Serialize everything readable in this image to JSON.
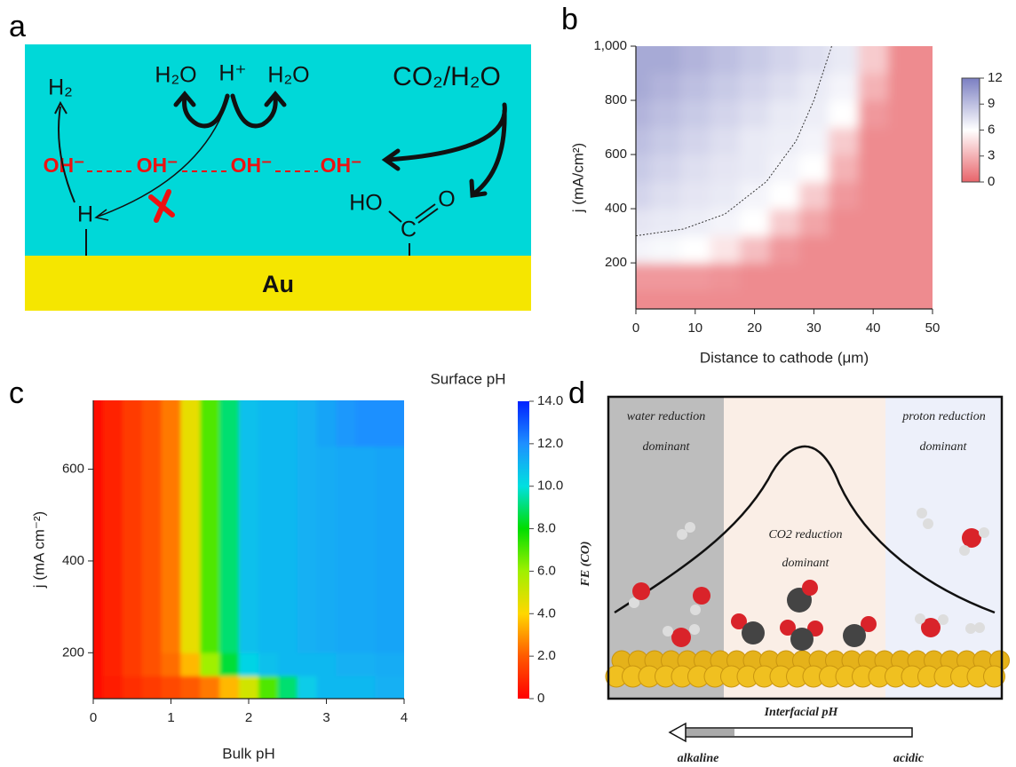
{
  "panel_labels": [
    "a",
    "b",
    "c",
    "d"
  ],
  "diagram_a": {
    "texts": [
      "H₂",
      "H₂O",
      "H⁺",
      "H₂O",
      "CO₂/H₂O",
      "OH⁻",
      "OH⁻",
      "OH⁻",
      "OH⁻",
      "H",
      "HO",
      "C",
      "O",
      "Au"
    ]
  },
  "chart_data": [
    {
      "type": "heatmap",
      "xlabel": "Distance to cathode (μm)",
      "ylabel": "j (mA/cm²)",
      "x": [
        0,
        5,
        10,
        15,
        20,
        25,
        30,
        35,
        40,
        45,
        50
      ],
      "y": [
        50,
        150,
        250,
        350,
        450,
        550,
        650,
        750,
        850,
        950
      ],
      "z": [
        [
          1.5,
          1.5,
          1.5,
          1.5,
          1.5,
          1.5,
          1.5,
          1.5,
          1.5,
          1.5,
          1.5
        ],
        [
          2,
          2,
          2,
          1.8,
          1.5,
          1.5,
          1.5,
          1.5,
          1.5,
          1.5,
          1.5
        ],
        [
          6.5,
          6.3,
          6,
          5,
          3.5,
          2,
          1.5,
          1.5,
          1.5,
          1.5,
          1.5
        ],
        [
          7.2,
          7,
          6.8,
          6.5,
          6,
          4,
          2.5,
          1.5,
          1.5,
          1.5,
          1.5
        ],
        [
          8,
          7.5,
          7.2,
          7,
          6.5,
          6,
          4,
          2,
          1.5,
          1.5,
          1.5
        ],
        [
          8.5,
          8,
          7.5,
          7.2,
          7,
          6.5,
          6,
          3,
          1.5,
          1.5,
          1.5
        ],
        [
          9,
          8.5,
          8,
          7.5,
          7,
          6.8,
          6.5,
          4,
          1.5,
          1.5,
          1.5
        ],
        [
          9.5,
          9,
          8.5,
          8,
          7.5,
          7,
          6.8,
          6,
          2,
          1.5,
          1.5
        ],
        [
          10,
          9.5,
          9,
          8.5,
          8,
          7.5,
          7,
          6.5,
          3,
          1.5,
          1.5
        ],
        [
          10,
          10,
          9.5,
          9,
          8.5,
          8,
          7.5,
          7,
          4,
          1.5,
          1.5
        ]
      ],
      "contour_line": {
        "x": [
          0,
          8,
          15,
          22,
          27,
          30,
          33
        ],
        "y": [
          300,
          325,
          380,
          500,
          650,
          800,
          1000
        ]
      },
      "xlim": [
        0,
        50
      ],
      "ylim": [
        30,
        1000
      ],
      "xticks": [
        0,
        10,
        20,
        30,
        40,
        50
      ],
      "yticks": [
        200,
        400,
        600,
        800,
        {
          "value": 1000,
          "label": "1,000"
        }
      ],
      "colorscale": [
        [
          0,
          "#e8646a"
        ],
        [
          6,
          "#ffffff"
        ],
        [
          12,
          "#7b7fc2"
        ]
      ],
      "colorbar": {
        "lim": [
          0,
          12
        ],
        "ticks": [
          0,
          3,
          6,
          9,
          12
        ]
      }
    },
    {
      "type": "contour",
      "xlabel": "Bulk pH",
      "ylabel": "j (mA cm⁻²)",
      "colorbar_title": "Surface pH",
      "x": [
        0,
        0.25,
        0.5,
        0.75,
        1,
        1.25,
        1.5,
        1.75,
        2,
        2.25,
        2.5,
        2.75,
        3,
        3.25,
        3.5,
        3.75,
        4
      ],
      "y": [
        125,
        175,
        225,
        275,
        325,
        375,
        425,
        475,
        525,
        575,
        625,
        675,
        725
      ],
      "z": [
        [
          0.3,
          0.6,
          1,
          1.3,
          1.6,
          2,
          2.5,
          3.5,
          5,
          7,
          9,
          10.5,
          11,
          11,
          11,
          11.2,
          11.2
        ],
        [
          0.3,
          0.8,
          1.3,
          1.8,
          2.3,
          3.5,
          6,
          8.5,
          10.3,
          10.8,
          11,
          11,
          11,
          11.2,
          11.2,
          11.3,
          11.3
        ],
        [
          0.3,
          0.8,
          1.3,
          1.8,
          2.5,
          4.5,
          7,
          9,
          10.8,
          11,
          11,
          11.2,
          11.3,
          11.4,
          11.4,
          11.5,
          11.5
        ],
        [
          0.3,
          0.8,
          1.3,
          1.8,
          2.5,
          4.5,
          7,
          9,
          10.8,
          11,
          11,
          11.2,
          11.3,
          11.4,
          11.4,
          11.5,
          11.5
        ],
        [
          0.3,
          0.8,
          1.3,
          1.8,
          2.5,
          4.5,
          7,
          9,
          10.8,
          11,
          11,
          11.2,
          11.3,
          11.4,
          11.4,
          11.5,
          11.5
        ],
        [
          0.3,
          0.8,
          1.3,
          1.8,
          2.5,
          4.5,
          7,
          9,
          10.8,
          11,
          11,
          11.2,
          11.3,
          11.4,
          11.4,
          11.5,
          11.5
        ],
        [
          0.3,
          0.8,
          1.3,
          1.8,
          2.5,
          4.5,
          7,
          9,
          10.8,
          11,
          11,
          11.2,
          11.3,
          11.4,
          11.4,
          11.5,
          11.5
        ],
        [
          0.3,
          0.8,
          1.3,
          1.8,
          2.5,
          4.5,
          7,
          9,
          10.8,
          11,
          11,
          11.2,
          11.3,
          11.4,
          11.4,
          11.5,
          11.5
        ],
        [
          0.3,
          0.8,
          1.3,
          1.8,
          2.5,
          4.5,
          7,
          9,
          10.8,
          11,
          11,
          11.2,
          11.3,
          11.4,
          11.4,
          11.5,
          11.5
        ],
        [
          0.3,
          0.8,
          1.3,
          1.8,
          2.5,
          4.5,
          7,
          9,
          10.8,
          11,
          11,
          11.2,
          11.3,
          11.4,
          11.4,
          11.5,
          11.5
        ],
        [
          0.3,
          0.8,
          1.3,
          1.8,
          2.5,
          4.5,
          7,
          9,
          10.8,
          11,
          11,
          11.2,
          11.3,
          11.4,
          11.4,
          11.5,
          11.5
        ],
        [
          0.3,
          0.8,
          1.3,
          1.8,
          2.5,
          4.5,
          7,
          9,
          10.8,
          11,
          11,
          11.2,
          11.5,
          11.8,
          12,
          12,
          12
        ],
        [
          0.3,
          0.8,
          1.3,
          1.8,
          2.5,
          4.5,
          7,
          9,
          10.8,
          11,
          11,
          11.2,
          11.5,
          11.8,
          12,
          12,
          12
        ]
      ],
      "xlim": [
        0,
        4
      ],
      "ylim": [
        100,
        750
      ],
      "xticks": [
        0,
        1,
        2,
        3,
        4
      ],
      "yticks": [
        200,
        400,
        600
      ],
      "colorscale": [
        [
          0,
          "#ff0000"
        ],
        [
          2,
          "#ff5a00"
        ],
        [
          4,
          "#ffd700"
        ],
        [
          6,
          "#a0f000"
        ],
        [
          8,
          "#00dd00"
        ],
        [
          10,
          "#00e0e0"
        ],
        [
          12,
          "#1e90ff"
        ],
        [
          14,
          "#0022ff"
        ]
      ],
      "colorbar": {
        "lim": [
          0,
          14
        ],
        "ticks": [
          0,
          {
            "value": 2,
            "label": "2.0"
          },
          {
            "value": 4,
            "label": "4.0"
          },
          {
            "value": 6,
            "label": "6.0"
          },
          {
            "value": 8,
            "label": "8.0"
          },
          {
            "value": 10,
            "label": "10.0"
          },
          {
            "value": 12,
            "label": "12.0"
          },
          {
            "value": 14,
            "label": "14.0"
          }
        ]
      }
    }
  ],
  "diagram_d": {
    "texts": [
      "water reduction",
      "dominant",
      "proton reduction",
      "dominant",
      "CO2 reduction",
      "dominant",
      "FE (CO)",
      "Interfacial pH",
      "alkaline",
      "acidic"
    ]
  }
}
